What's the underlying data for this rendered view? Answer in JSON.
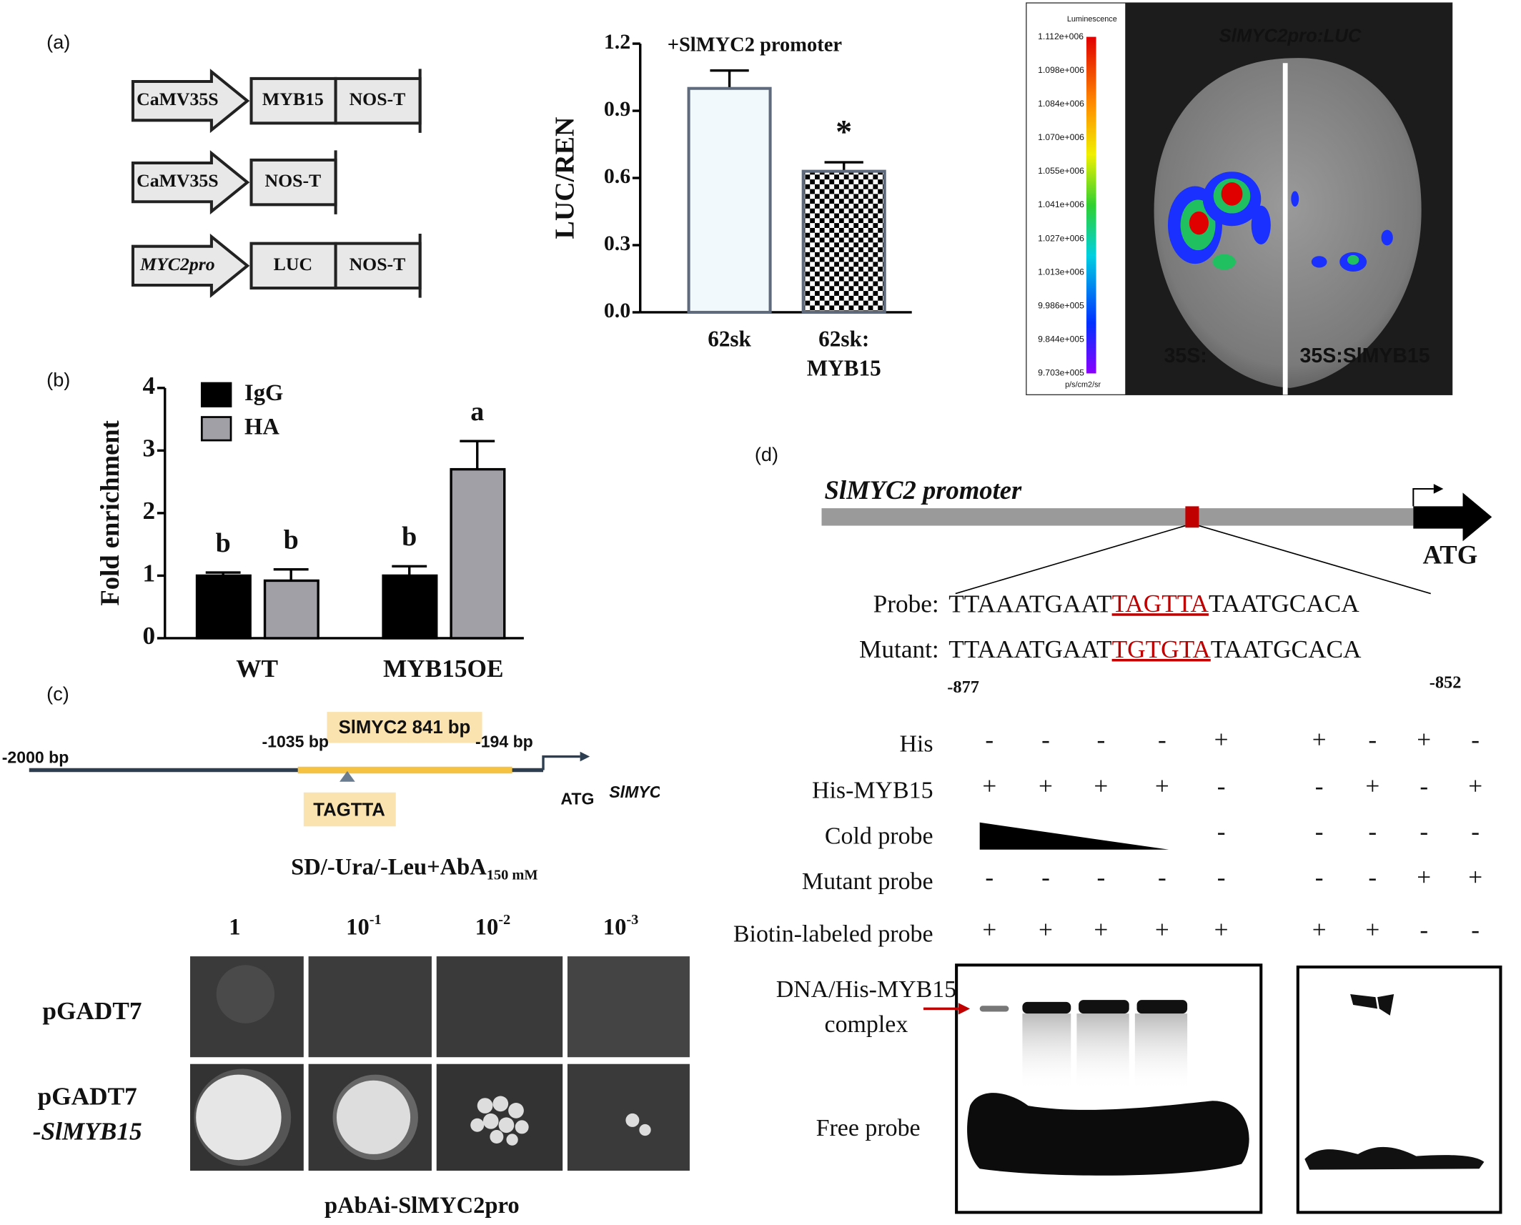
{
  "panel_labels": [
    "(a)",
    "(b)",
    "(c)",
    "(d)"
  ],
  "constructs": [
    [
      "CaMV35S",
      "MYB15",
      "NOS-T"
    ],
    [
      "CaMV35S",
      "NOS-T"
    ],
    [
      "MYC2pro",
      "LUC",
      "NOS-T"
    ]
  ],
  "chart_data": [
    {
      "type": "bar",
      "annotation": "+SlMYC2 promoter",
      "y_label": "LUC/REN",
      "categories": [
        "62sk",
        "62sk:\nMYB15"
      ],
      "values": [
        1.0,
        0.63
      ],
      "errors": [
        0.08,
        0.04
      ],
      "significance": [
        null,
        "*"
      ],
      "fills": [
        "#f2f9fd",
        "#000000"
      ],
      "patterns": [
        null,
        "checker"
      ],
      "edge_color": "#5f6b7c",
      "ylim": [
        0,
        1.2
      ],
      "yticks": [
        {
          "value": 0,
          "label": "0.0"
        },
        0.3,
        0.6,
        0.9,
        1.2
      ]
    },
    {
      "type": "bar",
      "y_label": "Fold enrichment",
      "categories": [
        "WT",
        "MYB15OE"
      ],
      "series": [
        {
          "name": "IgG",
          "color": "#000000",
          "values": [
            1.0,
            1.0
          ],
          "errors": [
            0.05,
            0.15
          ],
          "letters": [
            "b",
            "b"
          ]
        },
        {
          "name": "HA",
          "color": "#a0a0a6",
          "values": [
            0.92,
            2.7
          ],
          "errors": [
            0.18,
            0.45
          ],
          "letters": [
            "b",
            "a"
          ]
        }
      ],
      "ylim": [
        0,
        4
      ],
      "yticks": [
        0,
        1,
        2,
        3,
        4
      ],
      "legend": "upper left"
    }
  ],
  "leaf_image": {
    "title": "SlMYC2pro:LUC",
    "left": "35S:",
    "right": "35S:SlMYB15",
    "colorbar_title": "Luminescence",
    "colorbar_unit": "p/s/cm2/sr",
    "colorbar_labels": [
      "1.112e+006",
      "1.098e+006",
      "1.084e+006",
      "1.070e+006",
      "1.055e+006",
      "1.041e+006",
      "1.027e+006",
      "1.013e+006",
      "9.986e+005",
      "9.844e+005",
      "9.703e+005"
    ]
  },
  "y1h": {
    "construct": {
      "title": "SlMYC2 841 bp",
      "start": "-2000 bp",
      "region_start": "-1035 bp",
      "region_end": "-194 bp",
      "atg": "ATG",
      "gene": "SlMYC",
      "motif": "TAGTTA"
    },
    "medium": "SD/-Ura/-Leu+AbA",
    "medium_sub": "150 mM",
    "dilutions": [
      {
        "base": "1"
      },
      {
        "base": "10",
        "exp": "-1"
      },
      {
        "base": "10",
        "exp": "-2"
      },
      {
        "base": "10",
        "exp": "-3"
      }
    ],
    "rows": [
      "pGADT7",
      "pGADT7\n-SlMYB15"
    ],
    "bait": "pAbAi-SlMYC2pro"
  },
  "emsa": {
    "promoter": "SlMYC2 promoter",
    "atg": "ATG",
    "sequences": [
      {
        "label": "Probe:",
        "before": "TTAAATGAAT",
        "site": "TAGTTA",
        "after": "TAATGCACA"
      },
      {
        "label": "Mutant:",
        "before": "TTAAATGAAT",
        "site": "TGTGTA",
        "after": "TAATGCACA"
      }
    ],
    "positions": [
      "-877",
      "-852"
    ],
    "rows": [
      {
        "label": "His",
        "lanes": [
          "-",
          "-",
          "-",
          "-",
          "+",
          "+",
          "-",
          "+",
          "-"
        ]
      },
      {
        "label": "His-MYB15",
        "lanes": [
          "+",
          "+",
          "+",
          "+",
          "-",
          "-",
          "+",
          "-",
          "+"
        ]
      },
      {
        "label": "Cold probe",
        "lanes": [
          null,
          null,
          null,
          null,
          "-",
          "-",
          "-",
          "-",
          "-"
        ]
      },
      {
        "label": "Mutant probe",
        "lanes": [
          "-",
          "-",
          "-",
          "-",
          "-",
          "-",
          "-",
          "+",
          "+"
        ]
      },
      {
        "label": "Biotin-labeled probe",
        "lanes": [
          "+",
          "+",
          "+",
          "+",
          "+",
          "+",
          "+",
          "-",
          "-"
        ]
      }
    ],
    "bands": [
      "DNA/His-MYB15\ncomplex",
      "Free probe"
    ]
  }
}
